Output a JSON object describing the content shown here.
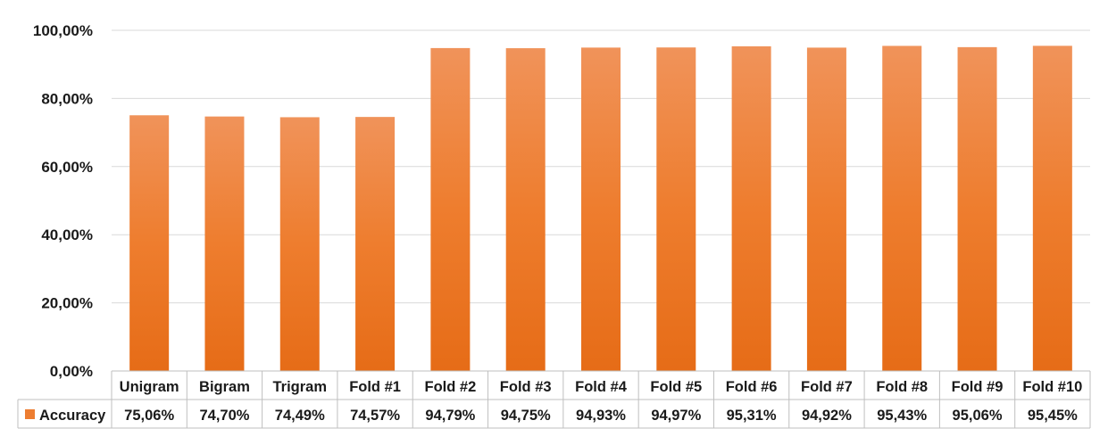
{
  "chart_data": {
    "type": "bar",
    "categories": [
      "Unigram",
      "Bigram",
      "Trigram",
      "Fold #1",
      "Fold #2",
      "Fold #3",
      "Fold #4",
      "Fold #5",
      "Fold #6",
      "Fold #7",
      "Fold #8",
      "Fold #9",
      "Fold #10"
    ],
    "series": [
      {
        "name": "Accuracy",
        "values": [
          75.06,
          74.7,
          74.49,
          74.57,
          94.79,
          94.75,
          94.93,
          94.97,
          95.31,
          94.92,
          95.43,
          95.06,
          95.45
        ],
        "labels": [
          "75,06%",
          "74,70%",
          "74,49%",
          "74,57%",
          "94,79%",
          "94,75%",
          "94,93%",
          "94,97%",
          "95,31%",
          "94,92%",
          "95,43%",
          "95,06%",
          "95,45%"
        ],
        "color": "#ED7D31"
      }
    ],
    "yticks": [
      "0,00%",
      "20,00%",
      "40,00%",
      "60,00%",
      "80,00%",
      "100,00%"
    ],
    "ylim": [
      0,
      100
    ],
    "grid": true,
    "legend": "data-table",
    "title": "",
    "xlabel": "",
    "ylabel": ""
  }
}
